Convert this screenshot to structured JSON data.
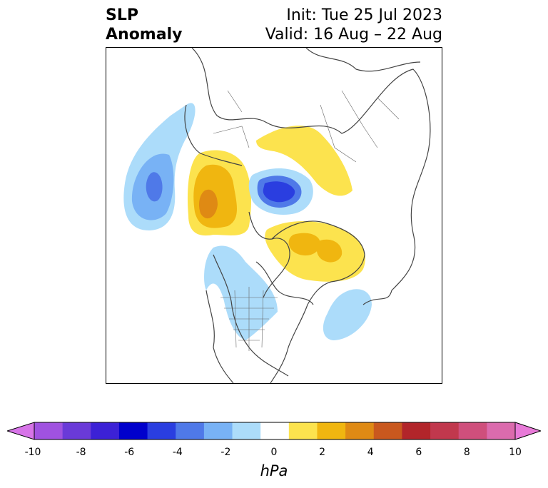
{
  "header": {
    "title_line1": "SLP",
    "title_line2": "Anomaly",
    "init": "Init: Tue 25 Jul 2023",
    "valid": "Valid: 16 Aug – 22 Aug"
  },
  "colorbar": {
    "unit": "hPa",
    "tick_labels": [
      "-10",
      "-8",
      "-6",
      "-4",
      "-2",
      "0",
      "2",
      "4",
      "6",
      "8",
      "10"
    ],
    "colors": [
      "#d774e8",
      "#a052e0",
      "#6a3ad8",
      "#3c21d6",
      "#0000cc",
      "#2a3ee0",
      "#4f79e8",
      "#78b2f5",
      "#acdcfa",
      "#ffffff",
      "#fce34e",
      "#f0b610",
      "#df8a14",
      "#c9581e",
      "#b2252a",
      "#c1384d",
      "#cf4f7c",
      "#db6bad",
      "#e87ad8"
    ],
    "min": -10,
    "max": 10
  }
}
